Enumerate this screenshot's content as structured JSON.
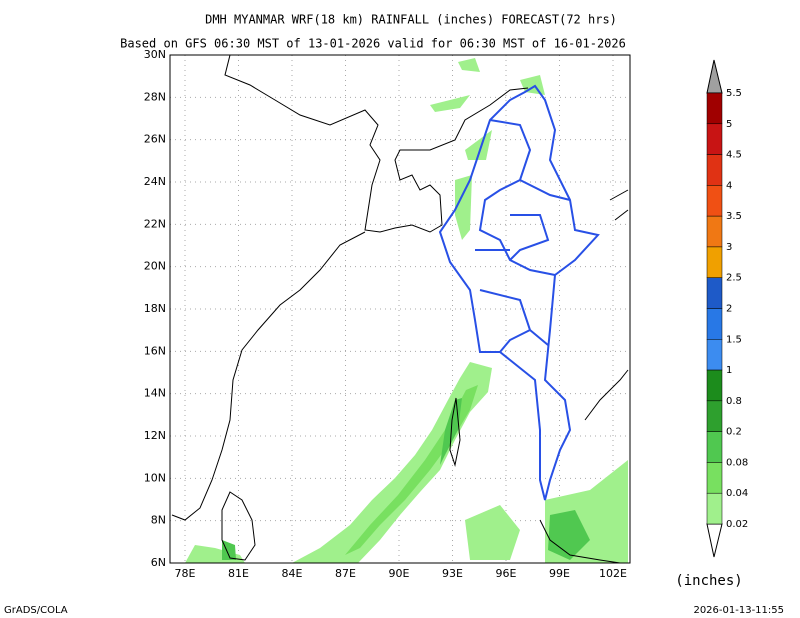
{
  "header": {
    "title": "DMH MYANMAR WRF(18 km) RAINFALL (inches) FORECAST(72 hrs)",
    "subtitle": "Based on GFS 06:30 MST of 13-01-2026 valid for 06:30 MST of 16-01-2026"
  },
  "map": {
    "lat_labels": [
      "30N",
      "28N",
      "26N",
      "24N",
      "22N",
      "20N",
      "18N",
      "16N",
      "14N",
      "12N",
      "10N",
      "8N",
      "6N"
    ],
    "lon_labels": [
      "78E",
      "81E",
      "84E",
      "87E",
      "90E",
      "93E",
      "96E",
      "99E",
      "102E"
    ]
  },
  "colorbar": {
    "labels": [
      "5.5",
      "5",
      "4.5",
      "4",
      "3.5",
      "3",
      "2.5",
      "2",
      "1.5",
      "1",
      "0.8",
      "0.2",
      "0.08",
      "0.04",
      "0.02"
    ],
    "colors": [
      "#a00000",
      "#c81414",
      "#e03214",
      "#f05014",
      "#f07814",
      "#f0a000",
      "#1e5ac8",
      "#2878e6",
      "#3c8cf0",
      "#1c8c1c",
      "#2ea02e",
      "#50c850",
      "#78e060",
      "#a0f08c"
    ],
    "unit": "(inches)"
  },
  "footer": {
    "left": "GrADS/COLA",
    "right": "2026-01-13-11:55"
  }
}
